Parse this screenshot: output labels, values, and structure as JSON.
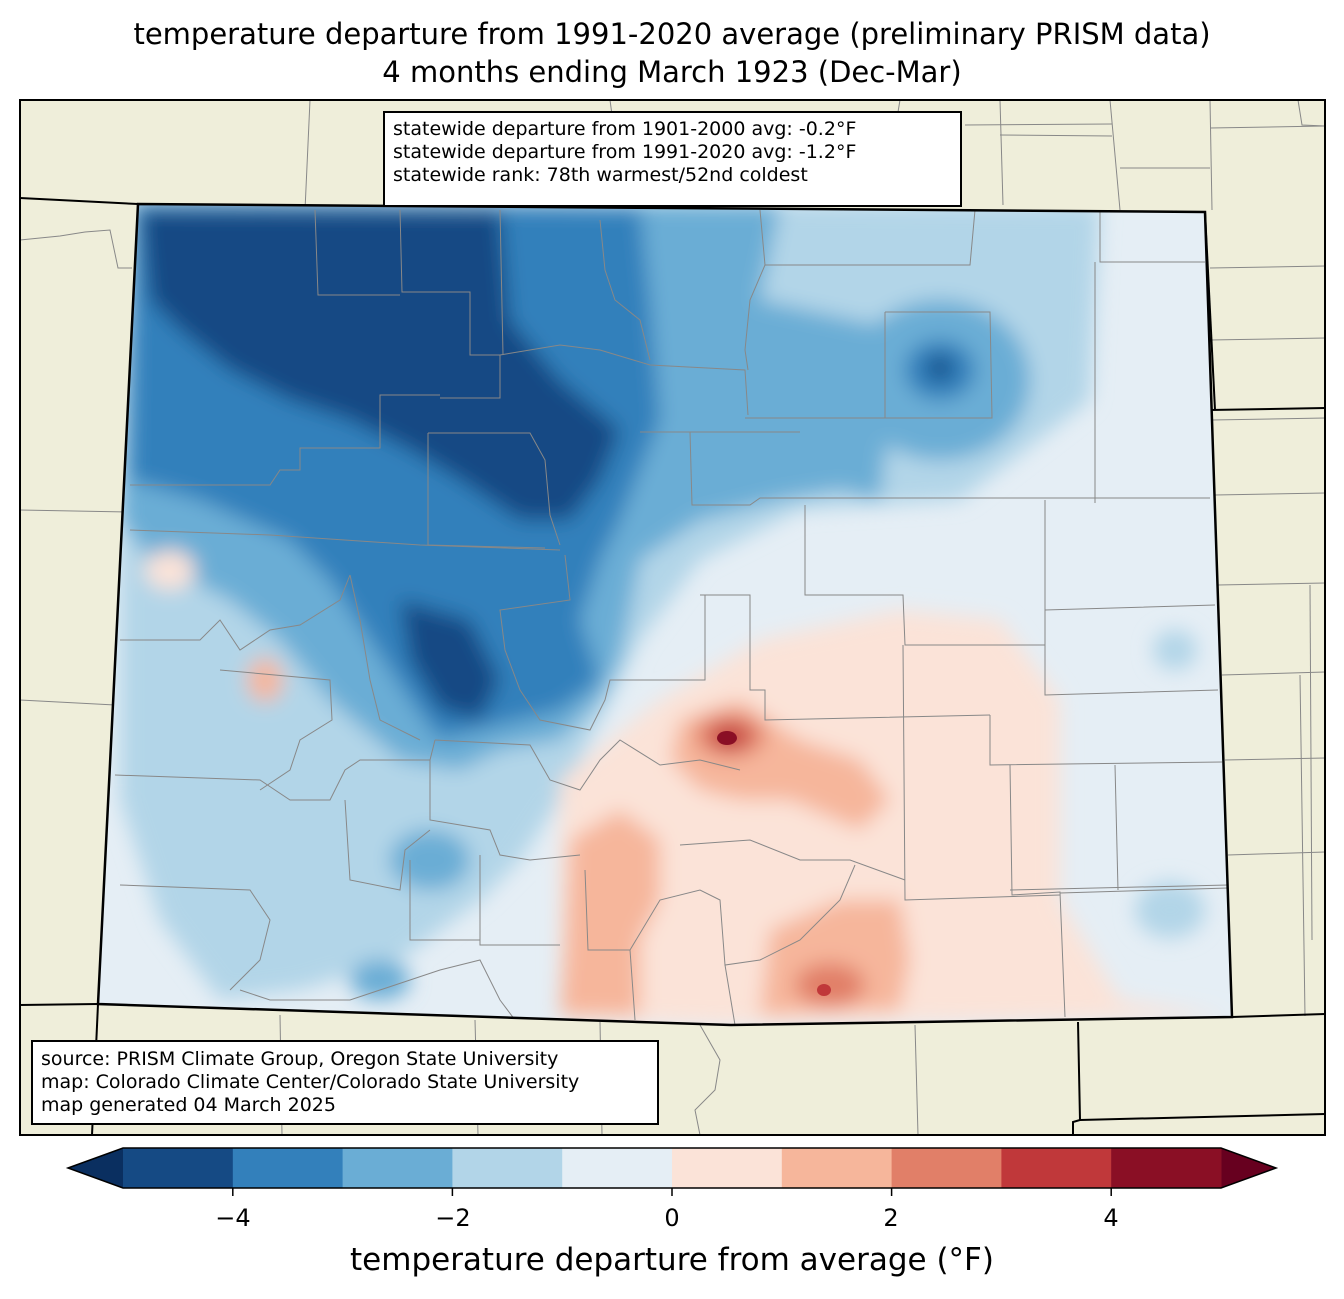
{
  "title_line1": "temperature departure from 1991-2020 average (preliminary PRISM data)",
  "title_line2": "4 months ending March 1923 (Dec-Mar)",
  "stats": {
    "line1": "statewide departure from 1901-2000 avg: -0.2°F",
    "line2": "statewide departure from 1991-2020 avg: -1.2°F",
    "line3": "statewide rank: 78th warmest/52nd coldest"
  },
  "source": {
    "line1": "source: PRISM Climate Group, Oregon State University",
    "line2": "map: Colorado Climate Center/Colorado State University",
    "line3": "map generated 04 March 2025"
  },
  "colorbar": {
    "label": "temperature departure from average (°F)",
    "ticks": [
      "−4",
      "−2",
      "0",
      "2",
      "4"
    ],
    "levels": [
      -5,
      -4,
      -3,
      -2,
      -1,
      0,
      1,
      2,
      3,
      4,
      5
    ],
    "colors": [
      "#154a84",
      "#3380bb",
      "#6aadd5",
      "#b2d5e8",
      "#e5eef5",
      "#fbe3d8",
      "#f6b69b",
      "#e17f68",
      "#c0383a",
      "#8a0f25"
    ],
    "under_color": "#0a2f60",
    "over_color": "#67001f"
  },
  "colors": {
    "land": "#efeeda",
    "state_border": "#000000",
    "county_border": "#888888"
  }
}
